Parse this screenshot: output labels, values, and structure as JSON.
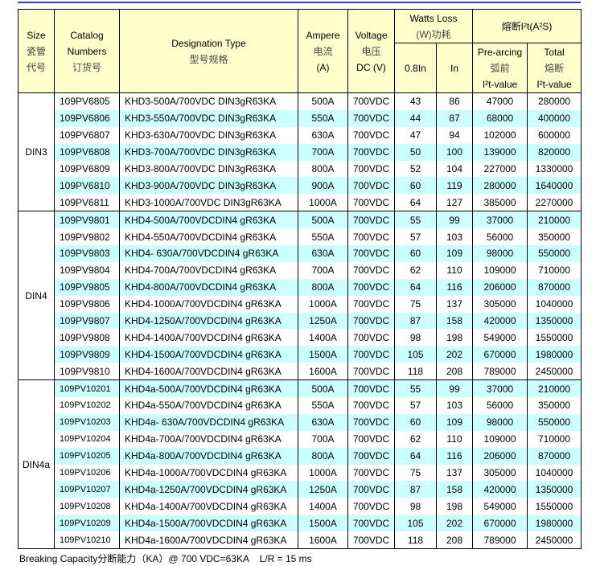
{
  "header": {
    "size": [
      "Size",
      "瓷管",
      "代号"
    ],
    "catalog": [
      "Catalog",
      "Numbers",
      "订货号"
    ],
    "designation": [
      "Designation Type",
      "型号规格"
    ],
    "ampere": [
      "Ampere",
      "电流",
      "(A)"
    ],
    "voltage": [
      "Voltage",
      "电压",
      "DC (V)"
    ],
    "watts": {
      "title": [
        "Watts Loss",
        "(W)功耗"
      ],
      "sub": [
        "0.8In",
        "In"
      ]
    },
    "i2t": {
      "title": "熔断I²t(A²S)",
      "sub": [
        [
          "Pre-arcing",
          "弧前",
          "I²t-value"
        ],
        [
          "Total",
          "熔断",
          "I²t-value"
        ]
      ]
    }
  },
  "groups": [
    {
      "size": "DIN3",
      "rows": [
        [
          "109PV6805",
          "KHD3-500A/700VDC DIN3gR63KA",
          "500A",
          "700VDC",
          43,
          86,
          47000,
          280000
        ],
        [
          "109PV6806",
          "KHD3-550A/700VDC DIN3gR63KA",
          "550A",
          "700VDC",
          44,
          87,
          68000,
          400000
        ],
        [
          "109PV6807",
          "KHD3-630A/700VDC DIN3gR63KA",
          "630A",
          "700VDC",
          47,
          94,
          102000,
          600000
        ],
        [
          "109PV6808",
          "KHD3-700A/700VDC DIN3gR63KA",
          "700A",
          "700VDC",
          50,
          100,
          139000,
          820000
        ],
        [
          "109PV6809",
          "KHD3-800A/700VDC DIN3gR63KA",
          "800A",
          "700VDC",
          52,
          104,
          227000,
          1330000
        ],
        [
          "109PV6810",
          "KHD3-900A/700VDC DIN3gR63KA",
          "900A",
          "700VDC",
          60,
          119,
          280000,
          1640000
        ],
        [
          "109PV6811",
          "KHD3-1000A/700VDC DIN3gR63KA",
          "1000A",
          "700VDC",
          64,
          127,
          385000,
          2270000
        ]
      ]
    },
    {
      "size": "DIN4",
      "rows": [
        [
          "109PV9801",
          "KHD4-500A/700VDCDIN4 gR63KA",
          "500A",
          "700VDC",
          55,
          99,
          37000,
          210000
        ],
        [
          "109PV9802",
          "KHD4-550A/700VDCDIN4 gR63KA",
          "550A",
          "700VDC",
          57,
          103,
          56000,
          350000
        ],
        [
          "109PV9803",
          "KHD4- 630A/700VDCDIN4 gR63KA",
          "630A",
          "700VDC",
          60,
          109,
          98000,
          550000
        ],
        [
          "109PV9804",
          "KHD4-700A/700VDCDIN4 gR63KA",
          "700A",
          "700VDC",
          62,
          110,
          109000,
          710000
        ],
        [
          "109PV9805",
          "KHD4-800A/700VDCDIN4 gR63KA",
          "800A",
          "700VDC",
          64,
          116,
          206000,
          870000
        ],
        [
          "109PV9806",
          "KHD4-1000A/700VDCDIN4 gR63KA",
          "1000A",
          "700VDC",
          75,
          137,
          305000,
          1040000
        ],
        [
          "109PV9807",
          "KHD4-1250A/700VDCDIN4 gR63KA",
          "1250A",
          "700VDC",
          87,
          158,
          420000,
          1350000
        ],
        [
          "109PV9808",
          "KHD4-1400A/700VDCDIN4 gR63KA",
          "1400A",
          "700VDC",
          98,
          198,
          549000,
          1550000
        ],
        [
          "109PV9809",
          "KHD4-1500A/700VDCDIN4 gR63KA",
          "1500A",
          "700VDC",
          105,
          202,
          670000,
          1980000
        ],
        [
          "109PV9810",
          "KHD4-1600A/700VDCDIN4 gR63KA",
          "1600A",
          "700VDC",
          118,
          208,
          789000,
          2450000
        ]
      ]
    },
    {
      "size": "DIN4a",
      "rows": [
        [
          "109PV10201",
          "KHD4a-500A/700VDCDIN4 gR63KA",
          "500A",
          "700VDC",
          55,
          99,
          37000,
          210000
        ],
        [
          "109PV10202",
          "KHD4a-550A/700VDCDIN4 gR63KA",
          "550A",
          "700VDC",
          57,
          103,
          56000,
          350000
        ],
        [
          "109PV10203",
          "KHD4a- 630A/700VDCDIN4 gR63KA",
          "630A",
          "700VDC",
          60,
          109,
          98000,
          550000
        ],
        [
          "109PV10204",
          "KHD4a-700A/700VDCDIN4 gR63KA",
          "700A",
          "700VDC",
          62,
          110,
          109000,
          710000
        ],
        [
          "109PV10205",
          "KHD4a-800A/700VDCDIN4 gR63KA",
          "800A",
          "700VDC",
          64,
          116,
          206000,
          870000
        ],
        [
          "109PV10206",
          "KHD4a-1000A/700VDCDIN4 gR63KA",
          "1000A",
          "700VDC",
          75,
          137,
          305000,
          1040000
        ],
        [
          "109PV10207",
          "KHD4a-1250A/700VDCDIN4 gR63KA",
          "1250A",
          "700VDC",
          87,
          158,
          420000,
          1350000
        ],
        [
          "109PV10208",
          "KHD4a-1400A/700VDCDIN4 gR63KA",
          "1400A",
          "700VDC",
          98,
          198,
          549000,
          1550000
        ],
        [
          "109PV10209",
          "KHD4a-1500A/700VDCDIN4 gR63KA",
          "1500A",
          "700VDC",
          105,
          202,
          670000,
          1980000
        ],
        [
          "109PV10210",
          "KHD4a-1600A/700VDCDIN4 gR63KA",
          "1600A",
          "700VDC",
          118,
          208,
          789000,
          2450000
        ]
      ]
    }
  ],
  "footer": "Breaking Capacity分断能力（KA）@ 700 VDC=63KA    L/R = 15 ms"
}
